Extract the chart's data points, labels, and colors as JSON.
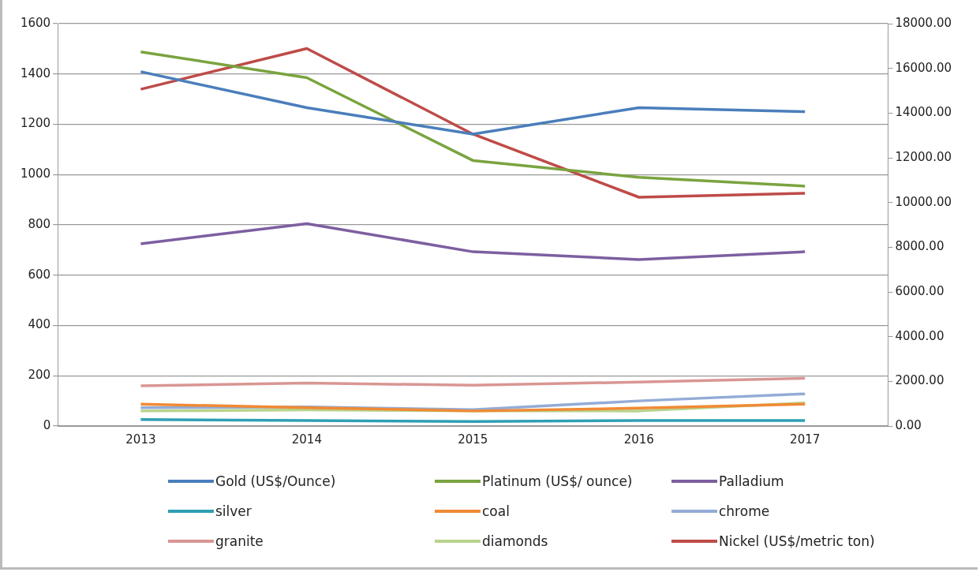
{
  "chart_data": {
    "type": "line",
    "categories": [
      "2013",
      "2014",
      "2015",
      "2016",
      "2017"
    ],
    "ylim": [
      0,
      1600
    ],
    "yticks": [
      0,
      200,
      400,
      600,
      800,
      1000,
      1200,
      1400,
      1600
    ],
    "y2lim": [
      0,
      18000
    ],
    "y2ticks": [
      {
        "value": 0,
        "label": "0.00"
      },
      {
        "value": 2000,
        "label": "2000.00"
      },
      {
        "value": 4000,
        "label": "4000.00"
      },
      {
        "value": 6000,
        "label": "6000.00"
      },
      {
        "value": 8000,
        "label": "8000.00"
      },
      {
        "value": 10000,
        "label": "10000.00"
      },
      {
        "value": 12000,
        "label": "12000.00"
      },
      {
        "value": 14000,
        "label": "14000.00"
      },
      {
        "value": 16000,
        "label": "16000.00"
      },
      {
        "value": 18000,
        "label": "18000.00"
      }
    ],
    "grid": "y",
    "legend": "bottom",
    "marker": "none",
    "series": [
      {
        "name": "Gold (US$/Ounce)",
        "color": "#4a7ebb",
        "values": [
          1409,
          1266,
          1161,
          1266,
          1250
        ]
      },
      {
        "name": "Platinum (US$/ ounce)",
        "color": "#7aa33f",
        "values": [
          1488,
          1385,
          1056,
          989,
          954
        ]
      },
      {
        "name": "Palladium",
        "color": "#7d5fa0",
        "values": [
          725,
          805,
          693,
          662,
          693
        ]
      },
      {
        "name": "silver",
        "color": "#2f9fb5",
        "values": [
          26,
          22,
          18,
          22,
          22
        ]
      },
      {
        "name": "coal",
        "color": "#f08a35",
        "values": [
          87,
          73,
          60,
          71,
          87
        ]
      },
      {
        "name": "chrome",
        "color": "#93acd6",
        "values": [
          73,
          76,
          65,
          100,
          128
        ]
      },
      {
        "name": "granite",
        "color": "#d99694",
        "values": [
          160,
          171,
          162,
          175,
          190
        ]
      },
      {
        "name": "diamonds",
        "color": "#b9d38c",
        "values": [
          60,
          64,
          60,
          60,
          92
        ]
      },
      {
        "name": "Nickel (US$/metric ton)",
        "color": "#be4b48",
        "axis": "y2",
        "values": [
          15067,
          16890,
          13060,
          10235,
          10415
        ]
      }
    ]
  }
}
